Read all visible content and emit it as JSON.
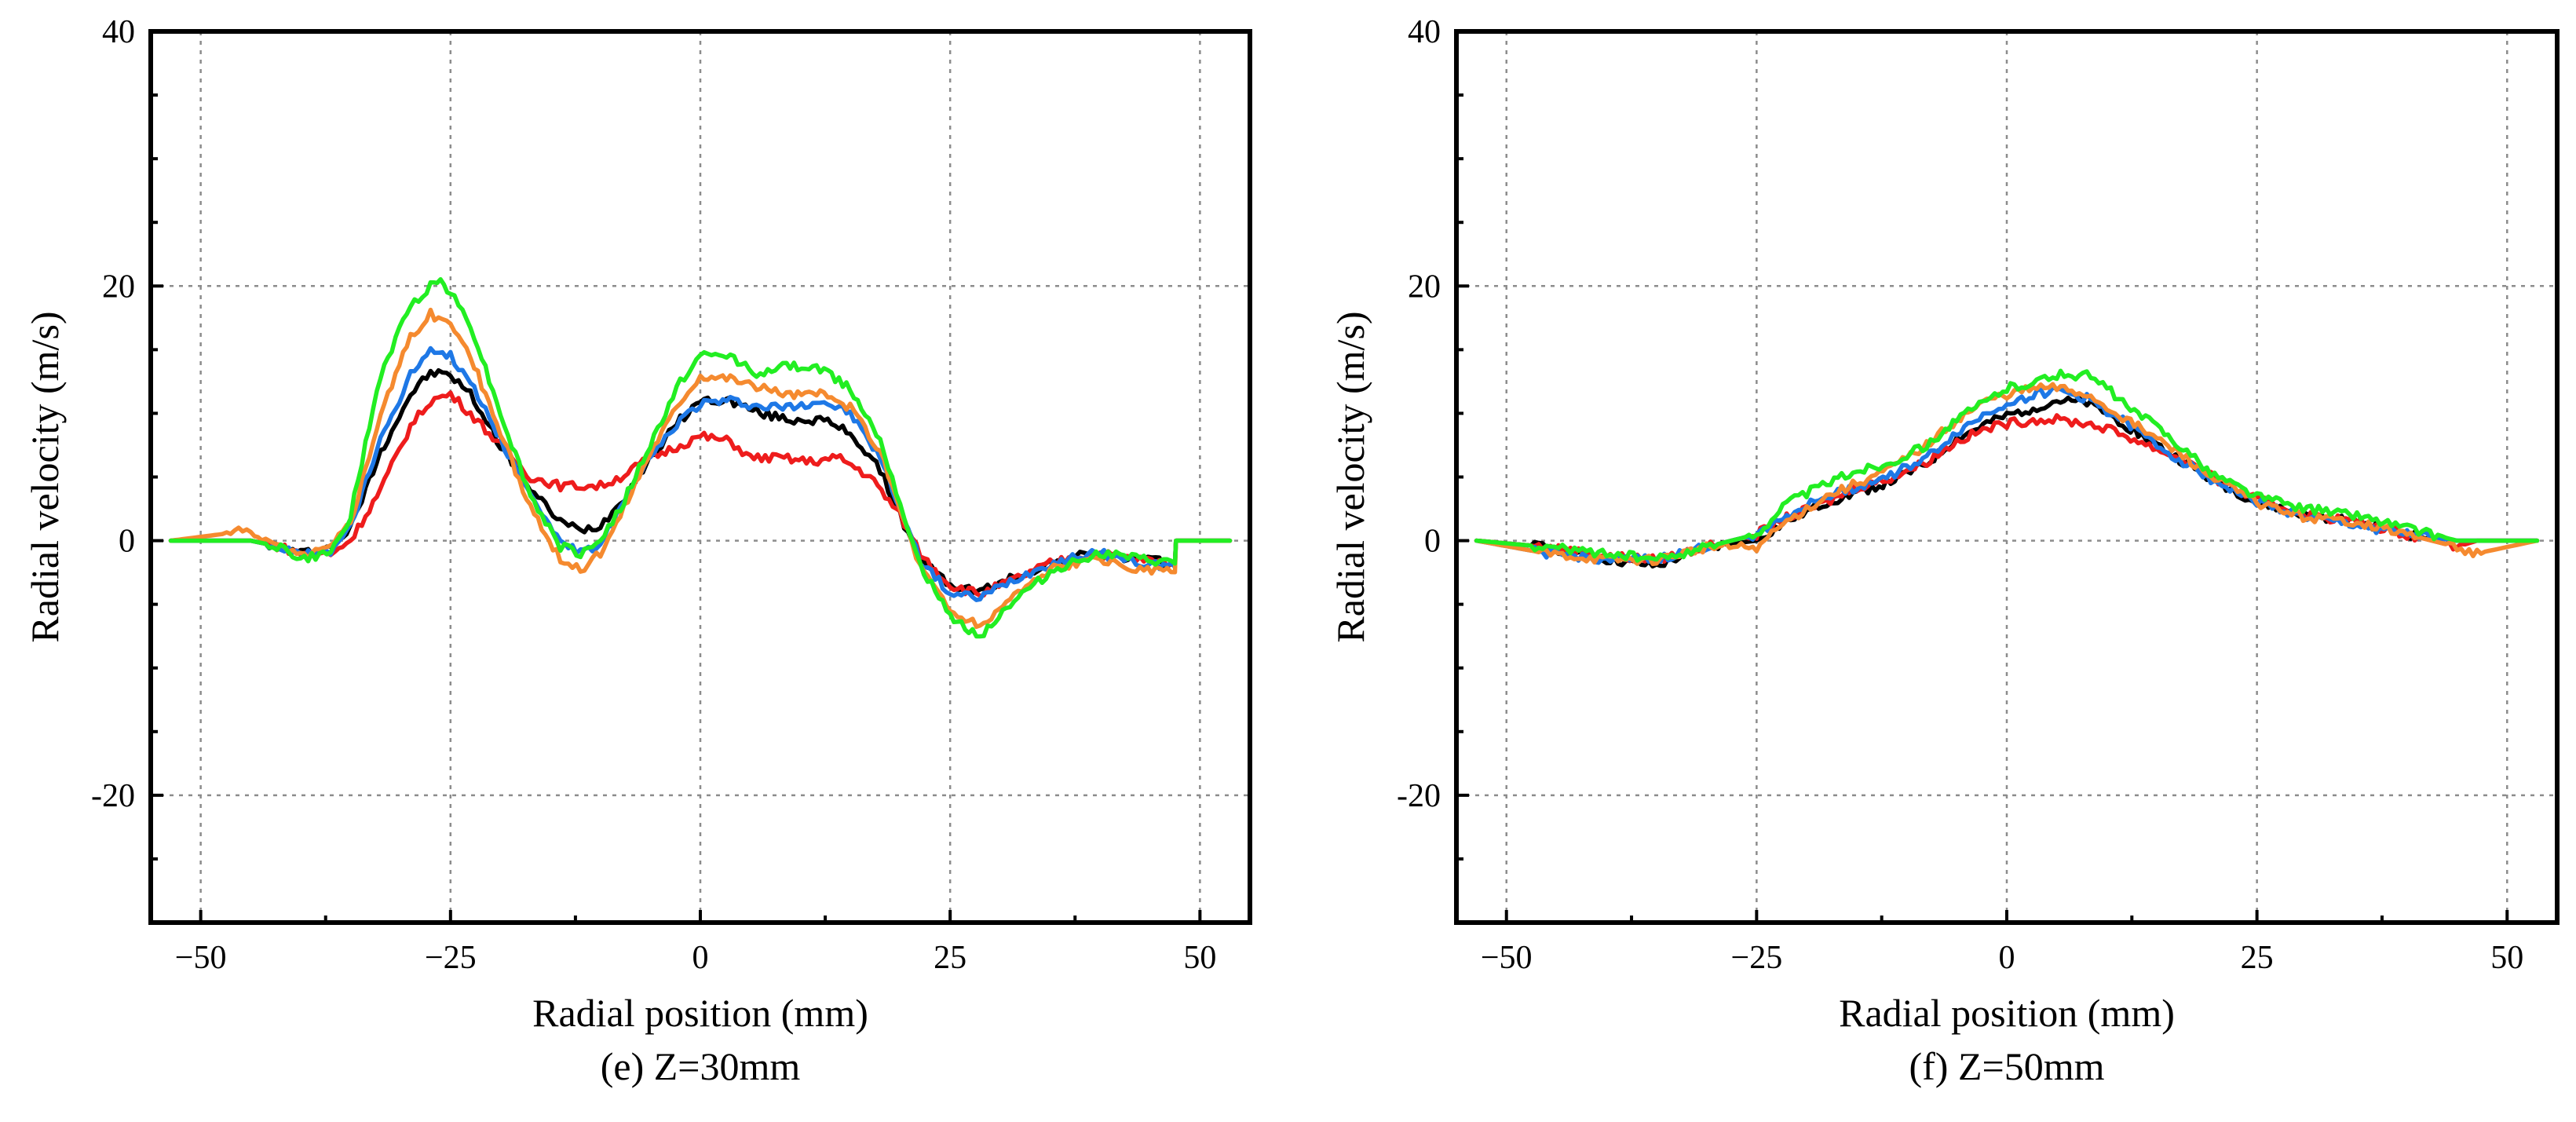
{
  "series_colors": {
    "black": "#000000",
    "red": "#ee1c1c",
    "blue": "#1e78e6",
    "orange": "#f58a2f",
    "green": "#22ee22"
  },
  "chart_data": [
    {
      "type": "line",
      "title": "",
      "caption": "(e) Z=30mm",
      "xlabel": "Radial position (mm)",
      "ylabel": "Radial velocity (m/s)",
      "xlim": [
        -55,
        55
      ],
      "ylim": [
        -30,
        40
      ],
      "xticks": [
        -50,
        -25,
        0,
        25,
        50
      ],
      "xtick_labels": [
        "−50",
        "−25",
        "0",
        "25",
        "50"
      ],
      "yticks": [
        -20,
        0,
        20,
        40
      ],
      "ytick_labels": [
        "-20",
        "0",
        "20",
        "40"
      ],
      "grid": true,
      "series": [
        {
          "name": "black",
          "color": "#000000",
          "x": [
            -53,
            -45,
            -42,
            -40,
            -37,
            -35,
            -32,
            -29,
            -27,
            -25,
            -23,
            -20,
            -17,
            -14,
            -12,
            -10,
            -8,
            -5,
            -2,
            0,
            3,
            6,
            9,
            12,
            15,
            18,
            20,
            22,
            25,
            28,
            31,
            35,
            38,
            40,
            44,
            47.5,
            47.6,
            53
          ],
          "y": [
            0,
            0,
            -0.5,
            -1,
            -0.5,
            1,
            7,
            11.5,
            13.2,
            13,
            11.5,
            7.5,
            4,
            1.5,
            0.8,
            1.2,
            3,
            6.5,
            9.5,
            11,
            11,
            10,
            9.5,
            9.5,
            8.5,
            5.5,
            2,
            -1.5,
            -3.5,
            -4,
            -3,
            -1.8,
            -1.2,
            -1,
            -1.5,
            -1.8,
            0,
            0
          ]
        },
        {
          "name": "red",
          "color": "#ee1c1c",
          "x": [
            -53,
            -45,
            -42,
            -40,
            -37,
            -35,
            -32,
            -29,
            -27,
            -25,
            -23,
            -20,
            -17,
            -14,
            -12,
            -10,
            -8,
            -5,
            -2,
            0,
            3,
            5,
            8,
            11,
            14,
            17,
            20,
            22,
            25,
            28,
            31,
            35,
            38,
            40,
            44,
            47.5,
            47.6,
            53
          ],
          "y": [
            0,
            0,
            -0.5,
            -1,
            -1,
            0,
            4,
            9,
            11,
            11.5,
            10,
            7.5,
            5,
            4.3,
            4.3,
            4.3,
            5,
            6.5,
            7.5,
            8.2,
            7.8,
            6.5,
            6.5,
            6.2,
            6.5,
            5,
            2,
            -1,
            -3.5,
            -4.2,
            -3.2,
            -1.8,
            -1.2,
            -1,
            -1.5,
            -1.8,
            0,
            0
          ]
        },
        {
          "name": "blue",
          "color": "#1e78e6",
          "x": [
            -53,
            -45,
            -42,
            -40,
            -37,
            -35,
            -32,
            -29,
            -27,
            -25,
            -23,
            -20,
            -17,
            -14,
            -12,
            -10,
            -8,
            -5,
            -2,
            0,
            3,
            6,
            9,
            12,
            15,
            18,
            20,
            22,
            25,
            28,
            31,
            35,
            38,
            40,
            44,
            47.5,
            47.6,
            53
          ],
          "y": [
            0,
            0,
            -0.5,
            -1.2,
            -0.8,
            1,
            8,
            13,
            15.2,
            14.5,
            12.5,
            8,
            3.5,
            0,
            -1,
            -0.3,
            2.5,
            6.5,
            9.5,
            10.8,
            11,
            10.5,
            10.5,
            11,
            10,
            6.5,
            2.5,
            -1.5,
            -4.2,
            -4.5,
            -3.2,
            -1.8,
            -1.2,
            -1,
            -1.8,
            -2,
            0,
            0
          ]
        },
        {
          "name": "orange",
          "color": "#f58a2f",
          "x": [
            -53,
            -45,
            -42,
            -40,
            -37,
            -35,
            -32,
            -29,
            -27,
            -25,
            -23,
            -20,
            -17,
            -14,
            -12,
            -10,
            -8,
            -5,
            -2,
            0,
            3,
            6,
            9,
            12,
            15,
            18,
            20,
            22,
            25,
            28,
            31,
            35,
            38,
            40,
            44,
            47.5,
            47.6,
            53
          ],
          "y": [
            0,
            0.8,
            -0.5,
            -1.2,
            -0.5,
            1.5,
            10,
            16,
            17.8,
            17,
            14.5,
            8.5,
            2.5,
            -1.5,
            -2.3,
            -1,
            2,
            7,
            11,
            13,
            12.8,
            12,
            11.5,
            11.5,
            10.5,
            7,
            2.5,
            -2,
            -5.5,
            -6.8,
            -4.5,
            -2.3,
            -1.8,
            -1.5,
            -2.3,
            -2.5,
            0,
            0
          ]
        },
        {
          "name": "green",
          "color": "#22ee22",
          "x": [
            -53,
            -45,
            -42,
            -40,
            -37,
            -35,
            -32,
            -29,
            -27,
            -26,
            -25,
            -23,
            -20,
            -17,
            -14,
            -12,
            -10,
            -8,
            -5,
            -2,
            0,
            3,
            6,
            9,
            12,
            15,
            18,
            20,
            22,
            25,
            28,
            31,
            35,
            38,
            40,
            44,
            47.5,
            47.6,
            53
          ],
          "y": [
            0,
            0,
            -0.5,
            -1.5,
            -1,
            2,
            13,
            18.5,
            20,
            20.5,
            19.5,
            17,
            10,
            3.5,
            -0.5,
            -1,
            0,
            2.5,
            7.5,
            12.5,
            14.5,
            14.5,
            13,
            13.8,
            13.5,
            12,
            8,
            3,
            -2,
            -6,
            -7.5,
            -5,
            -2.5,
            -1.5,
            -1,
            -1.5,
            -1.8,
            0,
            0
          ]
        }
      ]
    },
    {
      "type": "line",
      "title": "",
      "caption": "(f) Z=50mm",
      "xlabel": "Radial position (mm)",
      "ylabel": "Radial velocity (m/s)",
      "xlim": [
        -55,
        55
      ],
      "ylim": [
        -30,
        40
      ],
      "xticks": [
        -50,
        -25,
        0,
        25,
        50
      ],
      "xtick_labels": [
        "−50",
        "−25",
        "0",
        "25",
        "50"
      ],
      "yticks": [
        -20,
        0,
        20,
        40
      ],
      "ytick_labels": [
        "-20",
        "0",
        "20",
        "40"
      ],
      "grid": true,
      "series": [
        {
          "name": "black",
          "color": "#000000",
          "x": [
            -53,
            -46,
            -40,
            -35,
            -30,
            -25,
            -22,
            -18,
            -15,
            -12,
            -8,
            -5,
            -2,
            0,
            3,
            5,
            8,
            10,
            12,
            15,
            18,
            20,
            25,
            30,
            35,
            40,
            45,
            47,
            53
          ],
          "y": [
            0,
            -0.5,
            -1.5,
            -2,
            -0.5,
            0,
            1.5,
            3,
            3.8,
            4.5,
            6,
            8,
            9.2,
            9.8,
            10.5,
            11,
            10.8,
            10,
            9,
            7.5,
            6,
            5,
            3,
            2,
            1.5,
            0.5,
            0,
            0,
            0
          ]
        },
        {
          "name": "red",
          "color": "#ee1c1c",
          "x": [
            -53,
            -46,
            -40,
            -35,
            -30,
            -25,
            -22,
            -18,
            -15,
            -12,
            -8,
            -5,
            -2,
            0,
            3,
            5,
            8,
            10,
            12,
            15,
            18,
            20,
            25,
            30,
            35,
            40,
            45,
            47,
            53
          ],
          "y": [
            0,
            -0.5,
            -1.2,
            -1.5,
            -0.5,
            0.5,
            1.8,
            3,
            4.2,
            4.8,
            6.2,
            7.8,
            8.8,
            9.2,
            9.5,
            9.5,
            9.2,
            8.8,
            8.2,
            7.2,
            6.2,
            5.2,
            3.2,
            2,
            1.5,
            0.5,
            -0.5,
            0,
            0
          ]
        },
        {
          "name": "blue",
          "color": "#1e78e6",
          "x": [
            -53,
            -46,
            -40,
            -35,
            -30,
            -25,
            -22,
            -18,
            -15,
            -12,
            -8,
            -5,
            -2,
            0,
            3,
            5,
            8,
            10,
            12,
            15,
            18,
            20,
            25,
            30,
            35,
            40,
            45,
            47,
            53
          ],
          "y": [
            0,
            -1,
            -1.5,
            -1.5,
            -0.5,
            0.5,
            2,
            3.5,
            4.2,
            5,
            6.5,
            8.5,
            10,
            10.8,
            11.5,
            11.8,
            11.2,
            10.2,
            9.2,
            7.5,
            6,
            5,
            3,
            1.8,
            1.2,
            0.5,
            0,
            0,
            0
          ]
        },
        {
          "name": "orange",
          "color": "#f58a2f",
          "x": [
            -53,
            -46,
            -40,
            -35,
            -30,
            -25,
            -22,
            -18,
            -15,
            -12,
            -8,
            -5,
            -2,
            0,
            3,
            5,
            8,
            10,
            12,
            15,
            18,
            20,
            25,
            30,
            35,
            40,
            45,
            47,
            53
          ],
          "y": [
            0,
            -1,
            -1.5,
            -1.5,
            -0.5,
            -0.5,
            1.5,
            3.5,
            4.5,
            5.5,
            7.5,
            9.5,
            11,
            11.5,
            12,
            12,
            11.5,
            10.5,
            9.5,
            8,
            6.5,
            5.2,
            3,
            1.8,
            1.5,
            0.5,
            -0.5,
            -1,
            0
          ]
        },
        {
          "name": "green",
          "color": "#22ee22",
          "x": [
            -53,
            -46,
            -40,
            -35,
            -30,
            -25,
            -22,
            -18,
            -15,
            -12,
            -8,
            -5,
            -2,
            0,
            3,
            5,
            8,
            10,
            12,
            15,
            18,
            20,
            25,
            30,
            35,
            40,
            45,
            47,
            53
          ],
          "y": [
            0,
            -0.5,
            -1,
            -1.5,
            -0.5,
            0.5,
            3,
            4.5,
            5.5,
            6,
            7.5,
            9.5,
            11,
            12,
            12.5,
            13,
            13,
            12,
            10.5,
            9,
            7,
            5.5,
            3.5,
            2.5,
            2,
            1,
            0,
            0,
            0
          ]
        }
      ]
    }
  ]
}
